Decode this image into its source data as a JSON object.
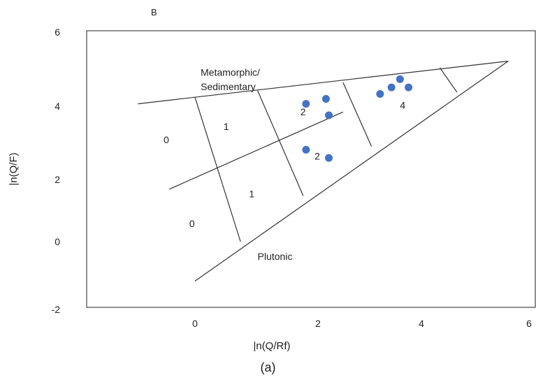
{
  "panel_letter": "B",
  "caption": "(a)",
  "chart_data": {
    "type": "scatter",
    "xlabel": "|n(Q/Rf)",
    "ylabel": "|n(Q/F)",
    "xlim": [
      -2,
      6
    ],
    "ylim": [
      -2,
      6
    ],
    "x_ticks": [
      "0",
      "2",
      "4",
      "6"
    ],
    "y_ticks": [
      "6",
      "4",
      "2",
      "0",
      "-2"
    ],
    "grid": false,
    "marker_color": "#4472C4",
    "line_color": "#333333",
    "points": [
      {
        "x": 1.95,
        "y": 4.2
      },
      {
        "x": 2.3,
        "y": 4.35
      },
      {
        "x": 2.35,
        "y": 3.85
      },
      {
        "x": 1.95,
        "y": 2.8
      },
      {
        "x": 2.35,
        "y": 2.55
      },
      {
        "x": 3.25,
        "y": 4.5
      },
      {
        "x": 3.45,
        "y": 4.7
      },
      {
        "x": 3.6,
        "y": 4.95
      },
      {
        "x": 3.75,
        "y": 4.7
      }
    ],
    "boundary_lines": [
      [
        [
          -1.0,
          4.2
        ],
        [
          5.5,
          5.5
        ]
      ],
      [
        [
          0.0,
          -1.2
        ],
        [
          5.5,
          5.5
        ]
      ],
      [
        [
          -0.45,
          1.6
        ],
        [
          2.6,
          3.95
        ]
      ],
      [
        [
          0.0,
          4.4
        ],
        [
          0.8,
          0.0
        ]
      ],
      [
        [
          1.1,
          4.6
        ],
        [
          1.9,
          1.4
        ]
      ],
      [
        [
          2.6,
          4.85
        ],
        [
          3.1,
          2.9
        ]
      ],
      [
        [
          4.3,
          5.3
        ],
        [
          4.6,
          4.55
        ]
      ]
    ],
    "annotations": [
      {
        "text": "Metamorphic/",
        "x": 0.1,
        "y": 5.05
      },
      {
        "text": "Sedimentary",
        "x": 0.1,
        "y": 4.62
      },
      {
        "text": "Plutonic",
        "x": 1.1,
        "y": -0.55
      },
      {
        "text": "0",
        "x": -0.55,
        "y": 3.0
      },
      {
        "text": "0",
        "x": -0.1,
        "y": 0.45
      },
      {
        "text": "1",
        "x": 0.5,
        "y": 3.4
      },
      {
        "text": "1",
        "x": 0.95,
        "y": 1.35
      },
      {
        "text": "2",
        "x": 1.85,
        "y": 3.85
      },
      {
        "text": "2",
        "x": 2.1,
        "y": 2.5
      },
      {
        "text": "4",
        "x": 3.6,
        "y": 4.05
      }
    ]
  }
}
